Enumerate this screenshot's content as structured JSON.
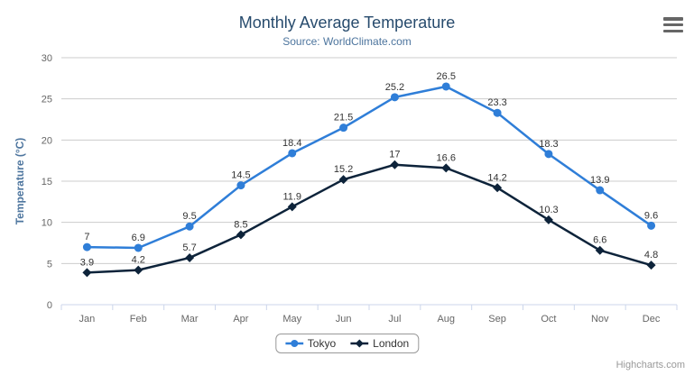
{
  "chart": {
    "title": "Monthly Average Temperature",
    "subtitle": "Source: WorldClimate.com",
    "credits": "Highcharts.com"
  },
  "toolbar": {
    "export_menu_icon": "hamburger-icon"
  },
  "colors": {
    "title": "#274b6d",
    "subtitle": "#4d759e",
    "axis_labels": "#666666",
    "axis_title": "#4d759e",
    "grid": "#cccccc",
    "axis_line": "#ccd6eb",
    "data_label": "#333333",
    "tokyo": "#2f7ed8",
    "london": "#0d233a",
    "legend_border": "#999999",
    "credits": "#999999",
    "menu_icon": "#666666"
  },
  "chart_data": {
    "type": "line",
    "title": "Monthly Average Temperature",
    "subtitle": "Source: WorldClimate.com",
    "categories": [
      "Jan",
      "Feb",
      "Mar",
      "Apr",
      "May",
      "Jun",
      "Jul",
      "Aug",
      "Sep",
      "Oct",
      "Nov",
      "Dec"
    ],
    "series": [
      {
        "name": "Tokyo",
        "color": "#2f7ed8",
        "marker": "circle",
        "values": [
          7,
          6.9,
          9.5,
          14.5,
          18.4,
          21.5,
          25.2,
          26.5,
          23.3,
          18.3,
          13.9,
          9.6
        ]
      },
      {
        "name": "London",
        "color": "#0d233a",
        "marker": "diamond",
        "values": [
          3.9,
          4.2,
          5.7,
          8.5,
          11.9,
          15.2,
          17,
          16.6,
          14.2,
          10.3,
          6.6,
          4.8
        ]
      }
    ],
    "xlabel": "",
    "ylabel": "Temperature (°C)",
    "ylim": [
      0,
      30
    ],
    "ytick_interval": 5,
    "grid": true,
    "data_labels": true,
    "legend_position": "bottom-center"
  }
}
